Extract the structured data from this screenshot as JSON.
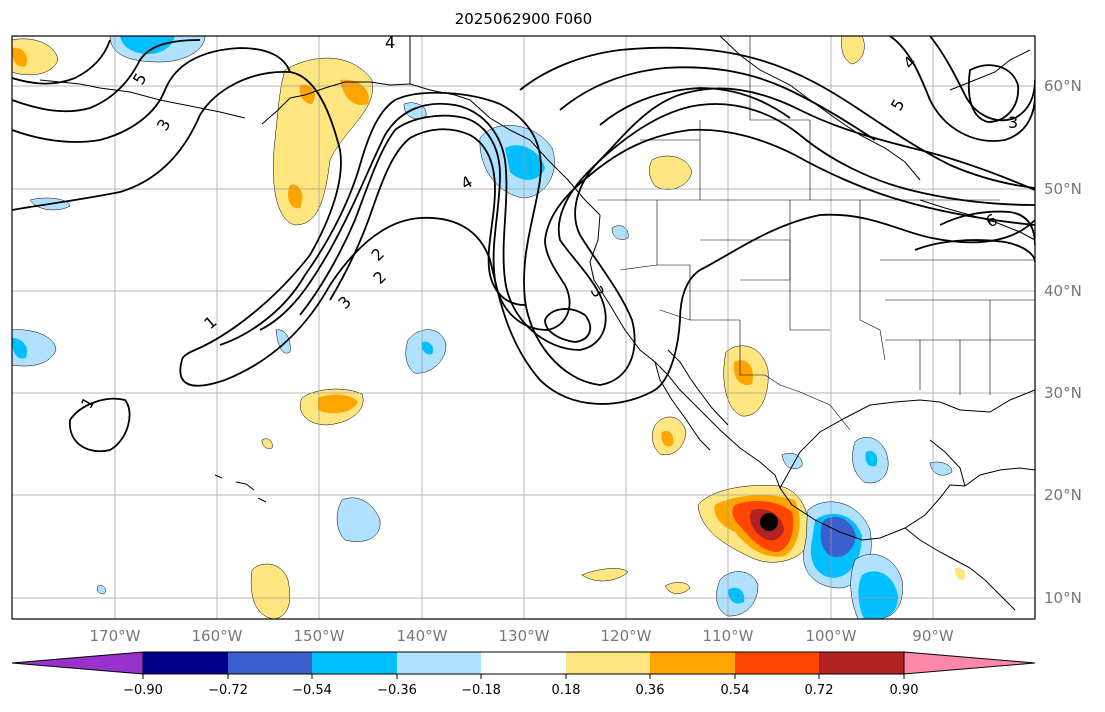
{
  "title": "2025062900 F060",
  "lat_labels": [
    "60°N",
    "50°N",
    "40°N",
    "30°N",
    "20°N",
    "10°N"
  ],
  "lon_labels": [
    "170°W",
    "160°W",
    "150°W",
    "140°W",
    "130°W",
    "120°W",
    "110°W",
    "100°W",
    "90°W"
  ],
  "contour_labels": [
    "1",
    "2",
    "3",
    "4",
    "5",
    "6"
  ],
  "colorbar": {
    "levels": [
      "−0.90",
      "−0.72",
      "−0.54",
      "−0.36",
      "−0.18",
      "0.18",
      "0.36",
      "0.54",
      "0.72",
      "0.90"
    ],
    "colors": [
      "#9932cc",
      "#00008b",
      "#3a5fcd",
      "#00bfff",
      "#b0e2ff",
      "#ffffff",
      "#ffe680",
      "#ffa500",
      "#ff4500",
      "#b22222",
      "#ff88aa"
    ]
  },
  "marker_color": "#000000"
}
